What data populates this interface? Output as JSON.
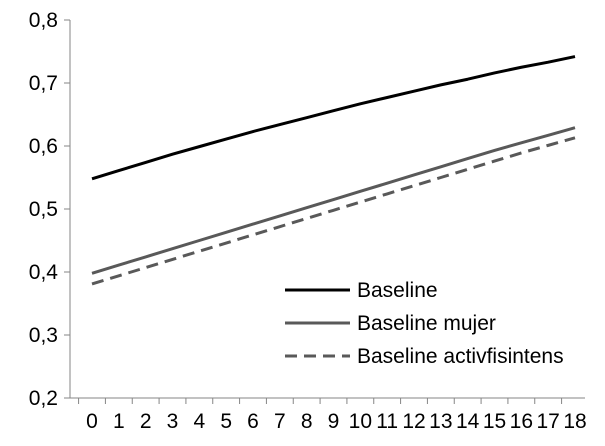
{
  "chart_data": {
    "type": "line",
    "title": "",
    "xlabel": "",
    "ylabel": "",
    "x": [
      0,
      1,
      2,
      3,
      4,
      5,
      6,
      7,
      8,
      9,
      10,
      11,
      12,
      13,
      14,
      15,
      16,
      17,
      18
    ],
    "x_tick_labels": [
      "0",
      "1",
      "2",
      "3",
      "4",
      "5",
      "6",
      "7",
      "8",
      "9",
      "10",
      "11",
      "12",
      "13",
      "14",
      "15",
      "16",
      "17",
      "18"
    ],
    "y_tick_labels": [
      "0,2",
      "0,3",
      "0,4",
      "0,5",
      "0,6",
      "0,7",
      "0,8"
    ],
    "ylim": [
      0.2,
      0.8
    ],
    "grid": false,
    "legend_position": "bottom-right",
    "series": [
      {
        "name": "Baseline",
        "color": "#000000",
        "dash": "solid",
        "values": [
          0.548,
          0.561,
          0.574,
          0.587,
          0.599,
          0.611,
          0.623,
          0.634,
          0.645,
          0.656,
          0.667,
          0.677,
          0.687,
          0.697,
          0.706,
          0.716,
          0.725,
          0.733,
          0.742
        ]
      },
      {
        "name": "Baseline mujer",
        "color": "#595959",
        "dash": "solid",
        "values": [
          0.398,
          0.411,
          0.424,
          0.437,
          0.45,
          0.463,
          0.476,
          0.489,
          0.502,
          0.515,
          0.528,
          0.541,
          0.554,
          0.567,
          0.58,
          0.593,
          0.605,
          0.617,
          0.629
        ]
      },
      {
        "name": "Baseline activfisintens",
        "color": "#595959",
        "dash": "dashed",
        "values": [
          0.381,
          0.394,
          0.407,
          0.42,
          0.433,
          0.446,
          0.459,
          0.472,
          0.485,
          0.498,
          0.511,
          0.524,
          0.537,
          0.55,
          0.563,
          0.576,
          0.589,
          0.601,
          0.613
        ]
      }
    ]
  }
}
